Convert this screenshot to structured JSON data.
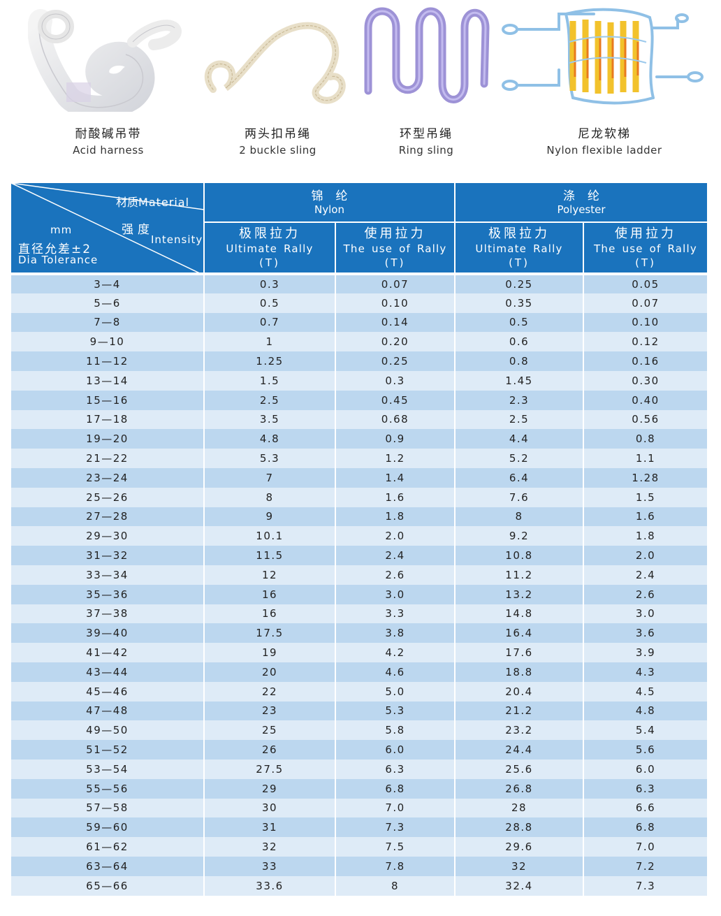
{
  "products": [
    {
      "cn": "耐酸碱吊带",
      "en": "Acid harness",
      "icon": "flat-webbing-sling-image"
    },
    {
      "cn": "两头扣吊绳",
      "en": "2 buckle sling",
      "icon": "double-eye-rope-sling-image"
    },
    {
      "cn": "环型吊绳",
      "en": "Ring sling",
      "icon": "round-endless-sling-image"
    },
    {
      "cn": "尼龙软梯",
      "en": "Nylon flexible ladder",
      "icon": "rope-ladder-image"
    }
  ],
  "table": {
    "corner": {
      "material_cn": "材质",
      "material_en": "Material",
      "strength_cn": "强度",
      "intensity_en": "Intensity",
      "mm": "mm",
      "dia_cn": "直径允差±2",
      "dia_en": "Dia Tolerance"
    },
    "groups": [
      {
        "cn": "锦纶",
        "en": "Nylon"
      },
      {
        "cn": "涤纶",
        "en": "Polyester"
      }
    ],
    "subheaders": [
      {
        "cn": "极限拉力",
        "en": "Ultimate Rally",
        "unit": "(T)"
      },
      {
        "cn": "使用拉力",
        "en": "The use of Rally",
        "unit": "(T)"
      },
      {
        "cn": "极限拉力",
        "en": "Ultimate Rally",
        "unit": "(T)"
      },
      {
        "cn": "使用拉力",
        "en": "The use of Rally",
        "unit": "(T)"
      }
    ],
    "rows": [
      [
        "3—4",
        "0.3",
        "0.07",
        "0.25",
        "0.05"
      ],
      [
        "5—6",
        "0.5",
        "0.10",
        "0.35",
        "0.07"
      ],
      [
        "7—8",
        "0.7",
        "0.14",
        "0.5",
        "0.10"
      ],
      [
        "9—10",
        "1",
        "0.20",
        "0.6",
        "0.12"
      ],
      [
        "11—12",
        "1.25",
        "0.25",
        "0.8",
        "0.16"
      ],
      [
        "13—14",
        "1.5",
        "0.3",
        "1.45",
        "0.30"
      ],
      [
        "15—16",
        "2.5",
        "0.45",
        "2.3",
        "0.40"
      ],
      [
        "17—18",
        "3.5",
        "0.68",
        "2.5",
        "0.56"
      ],
      [
        "19—20",
        "4.8",
        "0.9",
        "4.4",
        "0.8"
      ],
      [
        "21—22",
        "5.3",
        "1.2",
        "5.2",
        "1.1"
      ],
      [
        "23—24",
        "7",
        "1.4",
        "6.4",
        "1.28"
      ],
      [
        "25—26",
        "8",
        "1.6",
        "7.6",
        "1.5"
      ],
      [
        "27—28",
        "9",
        "1.8",
        "8",
        "1.6"
      ],
      [
        "29—30",
        "10.1",
        "2.0",
        "9.2",
        "1.8"
      ],
      [
        "31—32",
        "11.5",
        "2.4",
        "10.8",
        "2.0"
      ],
      [
        "33—34",
        "12",
        "2.6",
        "11.2",
        "2.4"
      ],
      [
        "35—36",
        "16",
        "3.0",
        "13.2",
        "2.6"
      ],
      [
        "37—38",
        "16",
        "3.3",
        "14.8",
        "3.0"
      ],
      [
        "39—40",
        "17.5",
        "3.8",
        "16.4",
        "3.6"
      ],
      [
        "41—42",
        "19",
        "4.2",
        "17.6",
        "3.9"
      ],
      [
        "43—44",
        "20",
        "4.6",
        "18.8",
        "4.3"
      ],
      [
        "45—46",
        "22",
        "5.0",
        "20.4",
        "4.5"
      ],
      [
        "47—48",
        "23",
        "5.3",
        "21.2",
        "4.8"
      ],
      [
        "49—50",
        "25",
        "5.8",
        "23.2",
        "5.4"
      ],
      [
        "51—52",
        "26",
        "6.0",
        "24.4",
        "5.6"
      ],
      [
        "53—54",
        "27.5",
        "6.3",
        "25.6",
        "6.0"
      ],
      [
        "55—56",
        "29",
        "6.8",
        "26.8",
        "6.3"
      ],
      [
        "57—58",
        "30",
        "7.0",
        "28",
        "6.6"
      ],
      [
        "59—60",
        "31",
        "7.3",
        "28.8",
        "6.8"
      ],
      [
        "61—62",
        "32",
        "7.5",
        "29.6",
        "7.0"
      ],
      [
        "63—64",
        "33",
        "7.8",
        "32",
        "7.2"
      ],
      [
        "65—66",
        "33.6",
        "8",
        "32.4",
        "7.3"
      ]
    ]
  },
  "colors": {
    "header_blue": "#1a73bd",
    "row_dark": "#bcd7ef",
    "row_light": "#deebf7"
  }
}
